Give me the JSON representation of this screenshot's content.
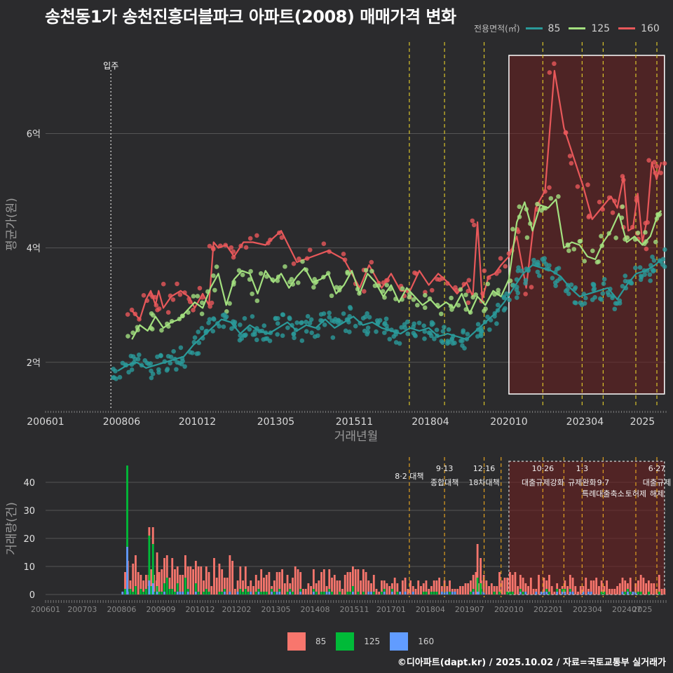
{
  "title": "송천동1가 송천진흥더블파크 아파트(2008) 매매가격 변화",
  "footer": "©디아파트(dapt.kr) / 2025.10.02 / 자료=국토교통부 실거래가",
  "legend_top": {
    "title": "전용면적(㎡)",
    "items": [
      {
        "label": "85",
        "color": "#2a9a9a"
      },
      {
        "label": "125",
        "color": "#a3e07f"
      },
      {
        "label": "160",
        "color": "#e8585a"
      }
    ]
  },
  "legend_bottom": {
    "items": [
      {
        "label": "85",
        "color": "#f8766d"
      },
      {
        "label": "125",
        "color": "#00ba38"
      },
      {
        "label": "160",
        "color": "#619cff"
      }
    ]
  },
  "chart_data": [
    {
      "type": "line",
      "title": "송천동1가 송천진흥더블파크 아파트(2008) 매매가격 변화",
      "xlabel": "거래년월",
      "ylabel": "평균가(원)",
      "ylim": [
        1.2,
        7.6
      ],
      "y_ticks": [
        {
          "v": 2,
          "label": "2억"
        },
        {
          "v": 4,
          "label": "4억"
        },
        {
          "v": 6,
          "label": "6억"
        }
      ],
      "x_ticks": [
        {
          "t": 2006.0,
          "label": "200601"
        },
        {
          "t": 2008.42,
          "label": "200806"
        },
        {
          "t": 2010.83,
          "label": "201012"
        },
        {
          "t": 2013.33,
          "label": "201305"
        },
        {
          "t": 2015.83,
          "label": "201511"
        },
        {
          "t": 2018.25,
          "label": "201804"
        },
        {
          "t": 2020.75,
          "label": "202010"
        },
        {
          "t": 2023.17,
          "label": "202304"
        },
        {
          "t": 2025.0,
          "label": "2025"
        }
      ],
      "annotation": {
        "t": 2008.08,
        "label": "입주"
      },
      "policy_lines": [
        2017.58,
        2018.7,
        2019.96,
        2021.83,
        2023.08,
        2023.75,
        2024.79,
        2025.46
      ],
      "highlight": [
        2020.75,
        2025.7
      ],
      "series": [
        {
          "name": "160",
          "color": "#e8585a",
          "x": [
            2008.75,
            2009.0,
            2009.2,
            2009.35,
            2009.5,
            2009.6,
            2009.75,
            2010.0,
            2010.3,
            2010.55,
            2010.75,
            2011.0,
            2011.2,
            2011.35,
            2011.5,
            2011.75,
            2012.0,
            2012.3,
            2012.6,
            2013.0,
            2013.5,
            2014.0,
            2014.5,
            2015.0,
            2015.5,
            2016.0,
            2016.3,
            2016.7,
            2017.0,
            2017.3,
            2017.6,
            2017.9,
            2018.2,
            2018.5,
            2018.8,
            2019.1,
            2019.4,
            2019.6,
            2019.75,
            2019.9,
            2020.1,
            2020.3,
            2020.5,
            2020.75,
            2021.0,
            2021.3,
            2021.6,
            2021.9,
            2022.2,
            2022.5,
            2022.8,
            2023.1,
            2023.4,
            2023.7,
            2024.0,
            2024.2,
            2024.4,
            2024.55,
            2024.7,
            2024.85,
            2025.0,
            2025.15,
            2025.3,
            2025.45,
            2025.6
          ],
          "y": [
            2.9,
            2.75,
            3.1,
            3.25,
            3.0,
            3.25,
            2.95,
            3.15,
            3.25,
            3.15,
            2.95,
            3.2,
            3.0,
            4.1,
            4.0,
            4.05,
            3.85,
            4.1,
            4.1,
            4.05,
            4.3,
            3.75,
            3.85,
            3.95,
            3.8,
            3.3,
            3.7,
            3.3,
            3.55,
            3.25,
            3.25,
            3.6,
            3.35,
            3.55,
            3.4,
            3.2,
            3.4,
            3.15,
            4.45,
            3.1,
            3.5,
            3.55,
            3.7,
            3.85,
            4.2,
            3.3,
            4.7,
            5.0,
            7.1,
            6.1,
            5.6,
            5.1,
            4.5,
            4.7,
            4.9,
            4.7,
            5.25,
            4.3,
            4.35,
            4.95,
            4.1,
            4.5,
            5.5,
            5.2,
            5.5
          ]
        },
        {
          "name": "125",
          "color": "#a3e07f",
          "x": [
            2008.75,
            2009.0,
            2009.25,
            2009.5,
            2009.75,
            2010.0,
            2010.25,
            2010.5,
            2010.75,
            2011.0,
            2011.25,
            2011.5,
            2011.75,
            2012.0,
            2012.25,
            2012.5,
            2012.75,
            2013.0,
            2013.25,
            2013.5,
            2013.75,
            2014.0,
            2014.25,
            2014.5,
            2014.75,
            2015.0,
            2015.25,
            2015.5,
            2015.75,
            2016.0,
            2016.25,
            2016.5,
            2016.75,
            2017.0,
            2017.25,
            2017.5,
            2017.75,
            2018.0,
            2018.25,
            2018.5,
            2018.75,
            2019.0,
            2019.25,
            2019.5,
            2019.75,
            2020.0,
            2020.25,
            2020.5,
            2020.75,
            2021.0,
            2021.25,
            2021.5,
            2021.75,
            2022.0,
            2022.25,
            2022.5,
            2022.75,
            2023.0,
            2023.25,
            2023.5,
            2023.75,
            2024.0,
            2024.25,
            2024.5,
            2024.75,
            2025.0,
            2025.25,
            2025.5,
            2025.6
          ],
          "y": [
            2.4,
            2.65,
            2.55,
            2.8,
            2.6,
            2.7,
            2.75,
            2.9,
            3.05,
            2.95,
            3.3,
            3.55,
            3.0,
            3.45,
            3.6,
            3.55,
            3.2,
            3.6,
            3.4,
            3.55,
            3.3,
            3.5,
            3.65,
            3.4,
            3.45,
            3.55,
            3.2,
            3.35,
            3.6,
            3.2,
            3.55,
            3.4,
            3.15,
            3.35,
            3.05,
            3.3,
            3.15,
            3.0,
            3.1,
            2.95,
            3.05,
            2.95,
            3.2,
            2.85,
            3.15,
            3.0,
            3.25,
            3.15,
            3.45,
            4.45,
            4.8,
            4.3,
            4.75,
            4.7,
            4.85,
            4.0,
            4.1,
            4.05,
            3.85,
            3.8,
            4.1,
            4.3,
            4.6,
            4.1,
            4.2,
            4.05,
            4.2,
            4.6,
            4.65
          ]
        },
        {
          "name": "85",
          "color": "#2a9a9a",
          "x": [
            2008.3,
            2008.6,
            2008.9,
            2009.2,
            2009.5,
            2009.8,
            2010.1,
            2010.4,
            2010.7,
            2011.0,
            2011.3,
            2011.6,
            2011.9,
            2012.2,
            2012.5,
            2012.8,
            2013.1,
            2013.4,
            2013.7,
            2014.0,
            2014.3,
            2014.6,
            2014.9,
            2015.2,
            2015.5,
            2015.8,
            2016.1,
            2016.4,
            2016.7,
            2017.0,
            2017.3,
            2017.6,
            2017.9,
            2018.2,
            2018.5,
            2018.8,
            2019.1,
            2019.4,
            2019.7,
            2020.0,
            2020.3,
            2020.6,
            2020.9,
            2021.2,
            2021.5,
            2021.8,
            2022.1,
            2022.4,
            2022.7,
            2023.0,
            2023.3,
            2023.6,
            2023.9,
            2024.2,
            2024.5,
            2024.8,
            2025.1,
            2025.4,
            2025.6
          ],
          "y": [
            1.85,
            1.95,
            2.0,
            1.9,
            1.95,
            2.0,
            2.05,
            2.1,
            2.3,
            2.45,
            2.6,
            2.75,
            2.7,
            2.5,
            2.65,
            2.55,
            2.5,
            2.6,
            2.7,
            2.55,
            2.65,
            2.6,
            2.75,
            2.6,
            2.7,
            2.8,
            2.65,
            2.7,
            2.6,
            2.55,
            2.5,
            2.6,
            2.55,
            2.6,
            2.45,
            2.5,
            2.45,
            2.4,
            2.55,
            2.7,
            2.85,
            3.05,
            3.3,
            3.55,
            3.7,
            3.65,
            3.6,
            3.5,
            3.3,
            3.15,
            3.2,
            3.25,
            3.3,
            3.1,
            3.35,
            3.55,
            3.6,
            3.7,
            3.8
          ]
        }
      ]
    },
    {
      "type": "bar",
      "xlabel": "",
      "ylabel": "거래량(건)",
      "ylim": [
        0,
        48
      ],
      "y_ticks": [
        0,
        10,
        20,
        30,
        40
      ],
      "x_ticks": [
        {
          "t": 2006.0,
          "label": "200601"
        },
        {
          "t": 2007.17,
          "label": "200703"
        },
        {
          "t": 2008.42,
          "label": "200806"
        },
        {
          "t": 2009.67,
          "label": "200909"
        },
        {
          "t": 2010.92,
          "label": "201012"
        },
        {
          "t": 2012.08,
          "label": "201202"
        },
        {
          "t": 2013.33,
          "label": "201305"
        },
        {
          "t": 2014.58,
          "label": "201408"
        },
        {
          "t": 2015.83,
          "label": "201511"
        },
        {
          "t": 2017.0,
          "label": "201701"
        },
        {
          "t": 2018.25,
          "label": "201804"
        },
        {
          "t": 2019.5,
          "label": "201907"
        },
        {
          "t": 2020.75,
          "label": "202010"
        },
        {
          "t": 2022.0,
          "label": "202201"
        },
        {
          "t": 2023.25,
          "label": "202304"
        },
        {
          "t": 2024.5,
          "label": "202407"
        },
        {
          "t": 2025.0,
          "label": "2025"
        }
      ],
      "policy_lines": [
        2017.58,
        2018.7,
        2019.96,
        2020.5,
        2021.83,
        2022.5,
        2023.08,
        2023.75,
        2024.79,
        2025.46
      ],
      "policy_labels": [
        {
          "t": 2017.58,
          "row": 1,
          "text": "8·2 대책"
        },
        {
          "t": 2018.7,
          "row": 0,
          "text": "9·13"
        },
        {
          "t": 2018.7,
          "row": 2,
          "text": "종합대책"
        },
        {
          "t": 2019.96,
          "row": 0,
          "text": "12·16"
        },
        {
          "t": 2019.96,
          "row": 2,
          "text": "18차대책"
        },
        {
          "t": 2021.83,
          "row": 0,
          "text": "10·26"
        },
        {
          "t": 2021.83,
          "row": 2,
          "text": "대출규제강화"
        },
        {
          "t": 2023.08,
          "row": 0,
          "text": "1·3"
        },
        {
          "t": 2023.08,
          "row": 2,
          "text": "규제완화"
        },
        {
          "t": 2023.75,
          "row": 2,
          "text": "9·7"
        },
        {
          "t": 2023.75,
          "row": 3,
          "text": "특례대출축소"
        },
        {
          "t": 2024.79,
          "row": 3,
          "text": "토허제"
        },
        {
          "t": 2025.46,
          "row": 0,
          "text": "6·27"
        },
        {
          "t": 2025.46,
          "row": 2,
          "text": "대출규제"
        },
        {
          "t": 2025.46,
          "row": 3,
          "text": "해제"
        }
      ],
      "highlight": [
        2020.75,
        2025.7
      ],
      "peaks": [
        {
          "t": 2008.6,
          "s85": 0,
          "s125": 29,
          "s160": 17
        },
        {
          "t": 2009.3,
          "s85": 3,
          "s125": 16,
          "s160": 5
        },
        {
          "t": 2009.42,
          "s85": 6,
          "s125": 14,
          "s160": 4
        },
        {
          "t": 2009.55,
          "s85": 12,
          "s125": 2,
          "s160": 1
        },
        {
          "t": 2019.75,
          "s85": 12,
          "s125": 5,
          "s160": 1
        },
        {
          "t": 2019.85,
          "s85": 9,
          "s125": 4,
          "s160": 0
        }
      ]
    }
  ]
}
